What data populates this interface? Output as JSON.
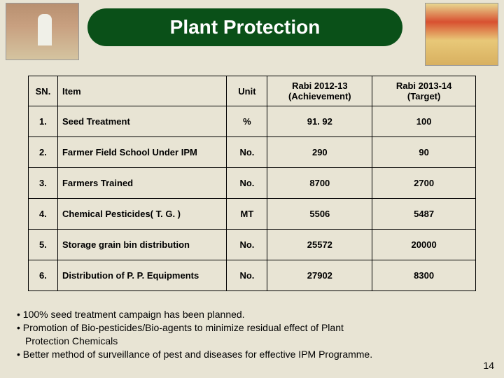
{
  "title": "Plant Protection",
  "title_bg": "#0a5018",
  "title_color": "#ffffff",
  "page_bg": "#e8e4d4",
  "table": {
    "headers": {
      "sn": "SN.",
      "item": "Item",
      "unit": "Unit",
      "col1_line1": "Rabi 2012-13",
      "col1_line2": "(Achievement)",
      "col2_line1": "Rabi 2013-14",
      "col2_line2": "(Target)"
    },
    "rows": [
      {
        "sn": "1.",
        "item": "Seed Treatment",
        "unit": "%",
        "v1": "91. 92",
        "v2": "100"
      },
      {
        "sn": "2.",
        "item": "Farmer Field School Under IPM",
        "unit": "No.",
        "v1": "290",
        "v2": "90"
      },
      {
        "sn": "3.",
        "item": "Farmers Trained",
        "unit": "No.",
        "v1": "8700",
        "v2": "2700"
      },
      {
        "sn": "4.",
        "item": "Chemical Pesticides( T. G. )",
        "unit": "MT",
        "v1": "5506",
        "v2": "5487"
      },
      {
        "sn": "5.",
        "item": "Storage grain bin distribution",
        "unit": "No.",
        "v1": "25572",
        "v2": "20000"
      },
      {
        "sn": "6.",
        "item": "Distribution of P. P. Equipments",
        "unit": "No.",
        "v1": "27902",
        "v2": "8300"
      }
    ]
  },
  "bullets": [
    "• 100% seed treatment campaign has been planned.",
    "• Promotion of Bio-pesticides/Bio-agents to  minimize residual effect of Plant",
    "  Protection Chemicals",
    "• Better method of surveillance of pest and diseases for effective IPM Programme."
  ],
  "page_number": "14"
}
